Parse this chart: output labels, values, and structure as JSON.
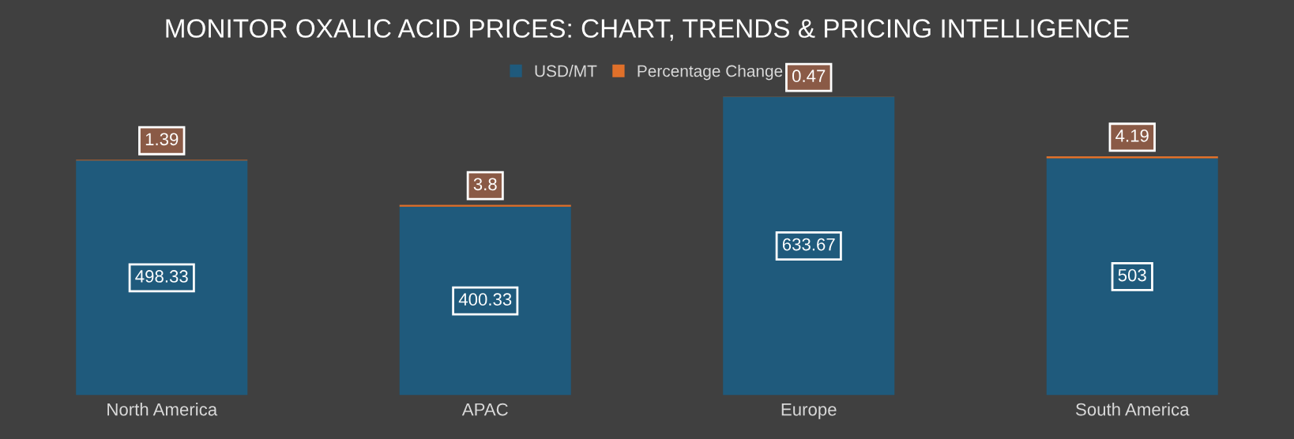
{
  "chart_data": {
    "type": "bar",
    "title": "MONITOR OXALIC ACID PRICES: CHART, TRENDS & PRICING INTELLIGENCE",
    "categories": [
      "North America",
      "APAC",
      "Europe",
      "South America"
    ],
    "stacked": true,
    "data_labels": true,
    "legend": "top",
    "grid": false,
    "series": [
      {
        "name": "USD/MT",
        "color": "#1f5a7c",
        "values": [
          498.33,
          400.33,
          633.67,
          503
        ]
      },
      {
        "name": "Percentage Change",
        "color": "#e0702a",
        "values": [
          1.39,
          3.8,
          0.47,
          4.19
        ]
      }
    ]
  }
}
